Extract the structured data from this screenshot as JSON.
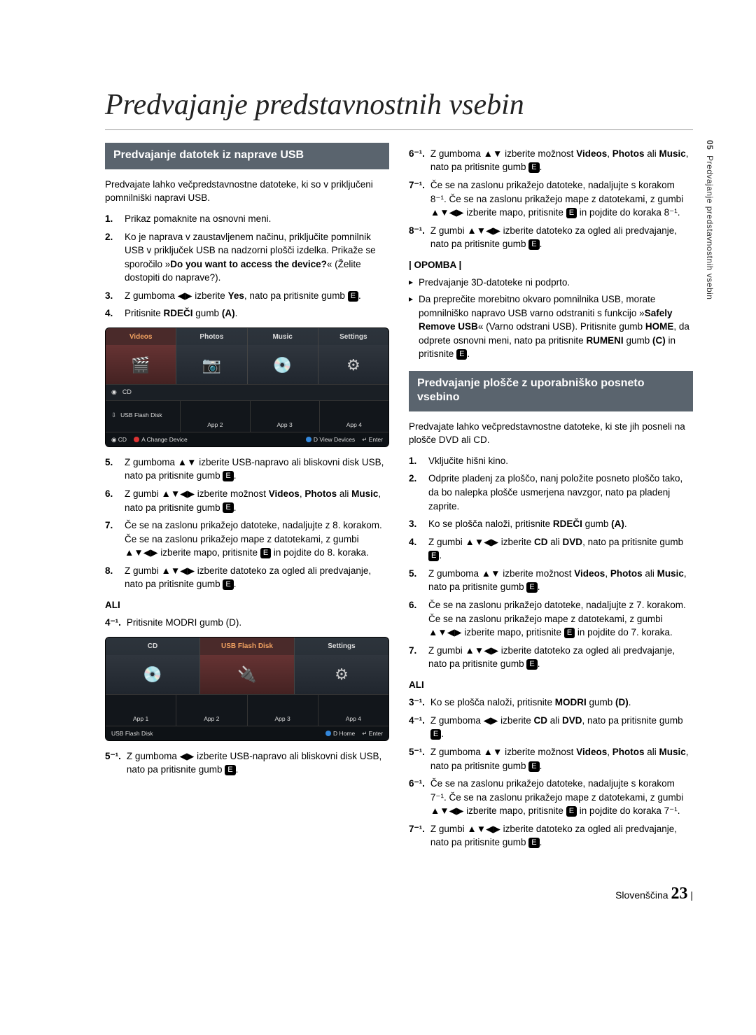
{
  "title": "Predvajanje predstavnostnih vsebin",
  "sideTab": {
    "num": "05",
    "text": "Predvajanje predstavnostnih vsebin"
  },
  "footer": {
    "lang": "Slovenščina",
    "page": "23"
  },
  "left": {
    "header": "Predvajanje datotek iz naprave USB",
    "intro": "Predvajate lahko večpredstavnostne datoteke, ki so v priključeni pomnilniški napravi USB.",
    "steps": [
      {
        "n": "1.",
        "t": "Prikaz pomaknite na osnovni meni."
      },
      {
        "n": "2.",
        "t": "Ko je naprava v zaustavljenem načinu, priključite pomnilnik USB v priključek USB na nadzorni plošči izdelka. Prikaže se sporočilo »Do you want to access the device?« (Želite dostopiti do naprave?)."
      },
      {
        "n": "3.",
        "t": "Z gumboma ◀▶ izberite Yes, nato pa pritisnite gumb "
      },
      {
        "n": "4.",
        "t": "Pritisnite RDEČI gumb (A)."
      }
    ],
    "shot1": {
      "tabs": [
        "Videos",
        "Photos",
        "Music",
        "Settings"
      ],
      "rows": [
        {
          "icon": "◉",
          "label": "CD"
        },
        {
          "icon": "⇩",
          "label": "USB Flash Disk"
        }
      ],
      "apps": [
        "",
        "App 2",
        "App 3",
        "App 4"
      ],
      "bottom": {
        "left": "◉ CD",
        "a": "A Change Device",
        "d": "D View Devices",
        "e": "↵ Enter"
      }
    },
    "steps2": [
      {
        "n": "5.",
        "t": "Z gumboma ▲▼ izberite USB-napravo ali bliskovni disk USB, nato pa pritisnite gumb "
      },
      {
        "n": "6.",
        "t": "Z gumbi ▲▼◀▶ izberite možnost Videos, Photos ali Music, nato pa pritisnite gumb "
      },
      {
        "n": "7.",
        "t": "Če se na zaslonu prikažejo datoteke, nadaljujte z 8. korakom. Če se na zaslonu prikažejo mape z datotekami, z gumbi ▲▼◀▶ izberite mapo, pritisnite  in pojdite do 8. koraka."
      },
      {
        "n": "8.",
        "t": "Z gumbi ▲▼◀▶ izberite datoteko za ogled ali predvajanje, nato pa pritisnite gumb "
      }
    ],
    "ali": "ALI",
    "alt1": {
      "n": "4⁻¹.",
      "t": "Pritisnite MODRI gumb (D)."
    },
    "shot2": {
      "tabs": [
        "CD",
        "USB Flash Disk",
        "Settings"
      ],
      "apps": [
        "App 1",
        "App 2",
        "App 3",
        "App 4"
      ],
      "bottom": {
        "left": "USB Flash Disk",
        "d": "D Home",
        "e": "↵ Enter"
      }
    },
    "alt2": {
      "n": "5⁻¹.",
      "t": "Z gumboma ◀▶ izberite USB-napravo ali bliskovni disk USB, nato pa pritisnite gumb "
    }
  },
  "right": {
    "steps": [
      {
        "n": "6⁻¹.",
        "t": "Z gumboma ▲▼ izberite možnost Videos, Photos ali Music, nato pa pritisnite gumb "
      },
      {
        "n": "7⁻¹.",
        "t": "Če se na zaslonu prikažejo datoteke, nadaljujte s korakom 8⁻¹. Če se na zaslonu prikažejo mape z datotekami, z gumbi ▲▼◀▶ izberite mapo, pritisnite  in pojdite do koraka 8⁻¹."
      },
      {
        "n": "8⁻¹.",
        "t": "Z gumbi ▲▼◀▶ izberite datoteko za ogled ali predvajanje, nato pa pritisnite gumb "
      }
    ],
    "noteLabel": "| OPOMBA |",
    "notes": [
      "Predvajanje 3D-datoteke ni podprto.",
      "Da preprečite morebitno okvaro pomnilnika USB, morate pomnilniško napravo USB varno odstraniti s funkcijo »Safely Remove USB« (Varno odstrani USB). Pritisnite gumb HOME, da odprete osnovni meni, nato pa pritisnite RUMENI gumb (C) in pritisnite "
    ],
    "header2": "Predvajanje plošče z uporabniško posneto vsebino",
    "intro2": "Predvajate lahko večpredstavnostne datoteke, ki ste jih posneli na plošče DVD ali CD.",
    "steps2": [
      {
        "n": "1.",
        "t": "Vključite hišni kino."
      },
      {
        "n": "2.",
        "t": "Odprite pladenj za ploščo, nanj položite posneto ploščo tako, da bo nalepka plošče usmerjena navzgor, nato pa pladenj zaprite."
      },
      {
        "n": "3.",
        "t": "Ko se plošča naloži, pritisnite RDEČI gumb (A)."
      },
      {
        "n": "4.",
        "t": "Z gumbi ▲▼◀▶ izberite CD ali DVD, nato pa pritisnite gumb "
      },
      {
        "n": "5.",
        "t": "Z gumboma ▲▼ izberite možnost Videos, Photos ali Music, nato pa pritisnite gumb "
      },
      {
        "n": "6.",
        "t": "Če se na zaslonu prikažejo datoteke, nadaljujte z 7. korakom. Če se na zaslonu prikažejo mape z datotekami, z gumbi ▲▼◀▶ izberite mapo, pritisnite  in pojdite do 7. koraka."
      },
      {
        "n": "7.",
        "t": "Z gumbi ▲▼◀▶ izberite datoteko za ogled ali predvajanje, nato pa pritisnite gumb "
      }
    ],
    "ali": "ALI",
    "alt": [
      {
        "n": "3⁻¹.",
        "t": "Ko se plošča naloži, pritisnite MODRI gumb (D)."
      },
      {
        "n": "4⁻¹.",
        "t": "Z gumboma ◀▶ izberite CD ali DVD, nato pa pritisnite gumb "
      },
      {
        "n": "5⁻¹.",
        "t": "Z gumboma ▲▼ izberite možnost Videos, Photos ali Music, nato pa pritisnite gumb "
      },
      {
        "n": "6⁻¹.",
        "t": "Če se na zaslonu prikažejo datoteke, nadaljujte s korakom 7⁻¹. Če se na zaslonu prikažejo mape z datotekami, z gumbi ▲▼◀▶ izberite mapo, pritisnite  in pojdite do koraka 7⁻¹."
      },
      {
        "n": "7⁻¹.",
        "t": "Z gumbi ▲▼◀▶ izberite datoteko za ogled ali predvajanje, nato pa pritisnite gumb "
      }
    ]
  }
}
